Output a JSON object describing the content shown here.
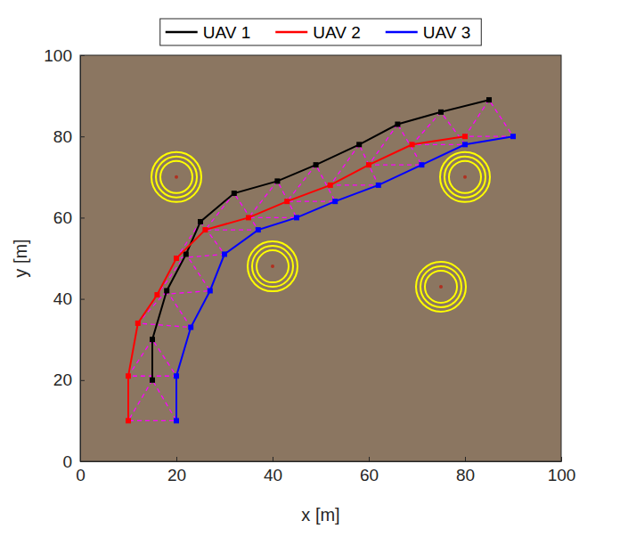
{
  "chart_data": {
    "type": "line",
    "x_label": "x [m]",
    "y_label": "y [m]",
    "xlim": [
      0,
      100
    ],
    "ylim": [
      0,
      100
    ],
    "xticks": [
      0,
      20,
      40,
      60,
      80,
      100
    ],
    "yticks": [
      0,
      20,
      40,
      60,
      80,
      100
    ],
    "legend": "top",
    "marker": "square",
    "series": [
      {
        "name": "UAV 1",
        "color": "#000000",
        "x": [
          15,
          15,
          18,
          22,
          25,
          32,
          41,
          49,
          58,
          66,
          75,
          85
        ],
        "values": [
          20,
          30,
          42,
          51,
          59,
          66,
          69,
          73,
          78,
          83,
          86,
          89
        ]
      },
      {
        "name": "UAV 2",
        "color": "#ff0000",
        "x": [
          10,
          10,
          12,
          16,
          20,
          26,
          35,
          43,
          52,
          60,
          69,
          80
        ],
        "values": [
          10,
          21,
          34,
          41,
          50,
          57,
          60,
          64,
          68,
          73,
          78,
          80
        ]
      },
      {
        "name": "UAV 3",
        "color": "#0000ff",
        "x": [
          20,
          20,
          23,
          27,
          30,
          37,
          45,
          53,
          62,
          71,
          80,
          90
        ],
        "values": [
          10,
          21,
          33,
          42,
          51,
          57,
          60,
          64,
          68,
          73,
          78,
          80
        ]
      }
    ],
    "obstacles": {
      "x": [
        20,
        40,
        80,
        75
      ],
      "y": [
        70,
        48,
        70,
        43
      ]
    }
  }
}
